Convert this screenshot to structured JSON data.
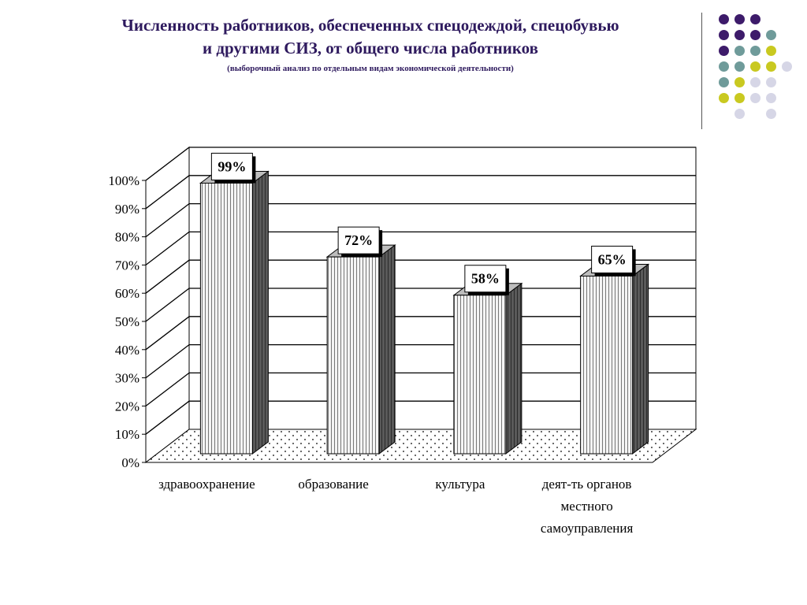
{
  "slide": {
    "title_line1": "Численность работников,  обеспеченных спецодеждой, спецобувью",
    "title_line2": "и другими СИЗ, от общего числа работников",
    "subtitle": "(выборочный анализ по отдельным видам экономической деятельности)"
  },
  "decoration": {
    "dot_colors": {
      "purple": "#3d1b6a",
      "teal": "#6f9b9a",
      "olive": "#c9c920",
      "lavender": "#d6d6e6"
    },
    "dot_rows": [
      [
        "purple",
        "purple",
        "purple",
        null
      ],
      [
        "purple",
        "purple",
        "purple",
        "teal"
      ],
      [
        "purple",
        "teal",
        "teal",
        "olive"
      ],
      [
        "teal",
        "teal",
        "olive",
        "olive",
        "lavender"
      ],
      [
        "teal",
        "olive",
        "lavender",
        "lavender"
      ],
      [
        "olive",
        "olive",
        "lavender",
        "lavender"
      ],
      [
        null,
        "lavender",
        null,
        "lavender"
      ]
    ]
  },
  "chart_data": {
    "type": "bar",
    "style": "3d-column",
    "categories": [
      "здравоохранение",
      "образование",
      "культура",
      "деят-ть органов местного самоуправления"
    ],
    "category_label_lines": [
      [
        "здравоохранение"
      ],
      [
        "образование"
      ],
      [
        "культура"
      ],
      [
        "деят-ть органов",
        "местного",
        "самоуправления"
      ]
    ],
    "values": [
      99,
      72,
      58,
      65
    ],
    "data_labels": [
      "99%",
      "72%",
      "58%",
      "65%"
    ],
    "y_ticks": [
      "0%",
      "10%",
      "20%",
      "30%",
      "40%",
      "50%",
      "60%",
      "70%",
      "80%",
      "90%",
      "100%"
    ],
    "ylim": [
      0,
      100
    ],
    "y_step": 10,
    "grid": true,
    "legend": "none",
    "title": "",
    "xlabel": "",
    "ylabel": "",
    "colors": {
      "bar_face": "#f4f4f4",
      "bar_stripe": "#777777",
      "bar_side": "#5a5a5a",
      "bar_top": "#bdbdbd",
      "floor_dots": "#000000"
    }
  }
}
